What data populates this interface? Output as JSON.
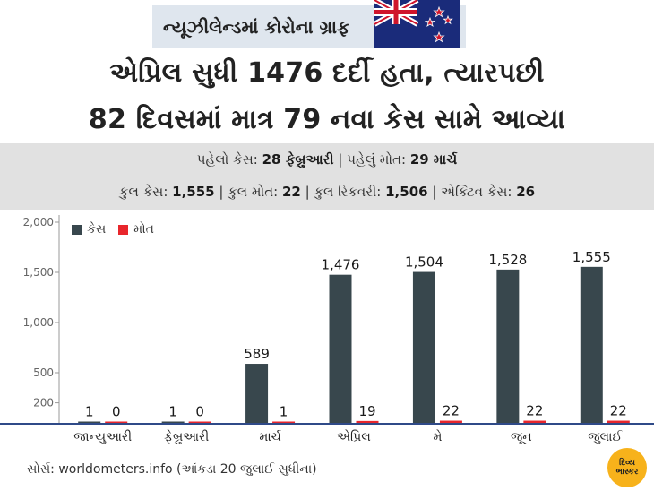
{
  "tag": {
    "title": "ન્યૂઝીલેન્ડમાં કોરોના ગ્રાફ",
    "flag_icon": "new-zealand-flag-icon"
  },
  "headline": {
    "line1": "એપ્રિલ સુધી 1476 દર્દી હતા, ત્યારપછી",
    "line2": "82 દિવસમાં માત્ર 79 નવા કેસ સામે આવ્યા"
  },
  "facts": {
    "line1": [
      {
        "label": "પહેલો કેસ: ",
        "value": "28 ફેબ્રુઆરી"
      },
      {
        "label": "પહેલું મોત: ",
        "value": "29 માર્ચ"
      }
    ],
    "line2": [
      {
        "label": "કુલ કેસ: ",
        "value": "1,555"
      },
      {
        "label": "કુલ મોત: ",
        "value": "22"
      },
      {
        "label": "કુલ રિકવરી: ",
        "value": "1,506"
      },
      {
        "label": "એક્ટિવ કેસ: ",
        "value": "26"
      }
    ],
    "separator": " | "
  },
  "colors": {
    "cases": "#38474d",
    "deaths": "#e8262c",
    "axis": "#2f4a88",
    "grid": "#d0d0d0",
    "band": "#e1e1e1"
  },
  "chart_data": {
    "type": "bar",
    "categories": [
      "જાન્યુઆરી",
      "ફેબ્રુઆરી",
      "માર્ચ",
      "એપ્રિલ",
      "મે",
      "જૂન",
      "જુલાઈ"
    ],
    "series": [
      {
        "name": "કેસ",
        "values": [
          1,
          1,
          589,
          1476,
          1504,
          1528,
          1555
        ],
        "labels": [
          "1",
          "1",
          "589",
          "1,476",
          "1,504",
          "1,528",
          "1,555"
        ]
      },
      {
        "name": "મોત",
        "values": [
          0,
          0,
          1,
          19,
          22,
          22,
          22
        ],
        "labels": [
          "0",
          "0",
          "1",
          "19",
          "22",
          "22",
          "22"
        ]
      }
    ],
    "yticks": [
      200,
      500,
      1000,
      1500,
      2000
    ],
    "ytick_labels": [
      "200",
      "500",
      "1,000",
      "1,500",
      "2,000"
    ],
    "ylim": [
      0,
      2000
    ],
    "legend": "top-left",
    "grid": false
  },
  "source": "સોર્સ: worldometers.info (આંકડા 20 જુલાઈ સુધીના)",
  "logo": {
    "line1": "દિવ્ય",
    "line2": "ભાસ્કર"
  }
}
